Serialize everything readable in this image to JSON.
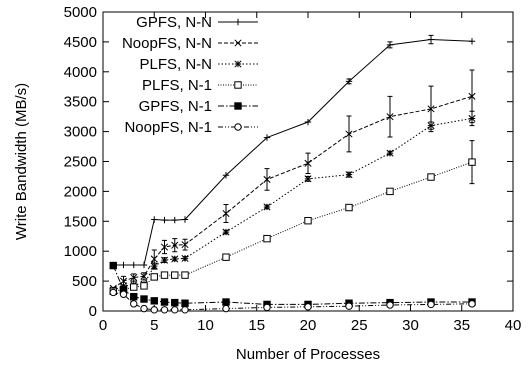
{
  "chart_data": {
    "type": "line",
    "title": "",
    "xlabel": "Number of Processes",
    "ylabel": "Write Bandwidth (MB/s)",
    "xlim": [
      0,
      40
    ],
    "ylim": [
      0,
      5000
    ],
    "xticks": [
      0,
      5,
      10,
      15,
      20,
      25,
      30,
      35,
      40
    ],
    "yticks": [
      0,
      500,
      1000,
      1500,
      2000,
      2500,
      3000,
      3500,
      4000,
      4500,
      5000
    ],
    "grid": false,
    "legend_position": "top-left",
    "series": [
      {
        "name": "GPFS, N-N",
        "marker": "plus",
        "dash": "solid",
        "x": [
          1,
          2,
          3,
          4,
          5,
          6,
          7,
          8,
          12,
          16,
          20,
          24,
          28,
          32,
          36
        ],
        "y": [
          770,
          770,
          770,
          770,
          1530,
          1520,
          1520,
          1530,
          2270,
          2900,
          3160,
          3840,
          4450,
          4540,
          4510
        ],
        "err": [
          0,
          0,
          0,
          0,
          0,
          0,
          0,
          0,
          0,
          0,
          0,
          40,
          50,
          70,
          0
        ]
      },
      {
        "name": "NoopFS, N-N",
        "marker": "cross",
        "dash": "dashed",
        "x": [
          1,
          2,
          3,
          4,
          5,
          6,
          7,
          8,
          12,
          16,
          20,
          24,
          28,
          32,
          36
        ],
        "y": [
          380,
          500,
          560,
          580,
          870,
          1070,
          1100,
          1110,
          1630,
          2200,
          2470,
          2960,
          3250,
          3380,
          3590
        ],
        "err": [
          0,
          80,
          60,
          60,
          150,
          110,
          110,
          90,
          150,
          180,
          170,
          300,
          340,
          380,
          440
        ]
      },
      {
        "name": "PLFS, N-N",
        "marker": "star",
        "dash": "dotted",
        "x": [
          1,
          2,
          3,
          4,
          5,
          6,
          7,
          8,
          12,
          16,
          20,
          24,
          28,
          32,
          36
        ],
        "y": [
          350,
          420,
          440,
          450,
          750,
          850,
          870,
          880,
          1320,
          1740,
          2210,
          2280,
          2640,
          3100,
          3220
        ],
        "err": [
          0,
          0,
          0,
          0,
          50,
          40,
          30,
          30,
          30,
          30,
          40,
          40,
          30,
          60,
          120
        ]
      },
      {
        "name": "PLFS, N-1",
        "marker": "square-open",
        "dash": "fine-dotted",
        "x": [
          1,
          2,
          3,
          4,
          5,
          6,
          7,
          8,
          12,
          16,
          20,
          24,
          28,
          32,
          36
        ],
        "y": [
          330,
          360,
          400,
          420,
          570,
          600,
          600,
          600,
          900,
          1210,
          1510,
          1730,
          2000,
          2240,
          2490
        ],
        "err": [
          0,
          0,
          0,
          0,
          0,
          0,
          0,
          0,
          0,
          0,
          0,
          0,
          0,
          0,
          360
        ]
      },
      {
        "name": "GPFS, N-1",
        "marker": "square-filled",
        "dash": "dash-dot",
        "x": [
          1,
          2,
          3,
          4,
          5,
          6,
          7,
          8,
          12,
          16,
          20,
          24,
          28,
          32,
          36
        ],
        "y": [
          760,
          350,
          240,
          200,
          170,
          150,
          140,
          130,
          150,
          110,
          110,
          130,
          140,
          150,
          150
        ],
        "err": [
          0,
          0,
          0,
          0,
          0,
          0,
          0,
          0,
          0,
          0,
          0,
          0,
          0,
          0,
          0
        ]
      },
      {
        "name": "NoopFS, N-1",
        "marker": "circle-open",
        "dash": "dash-dot-dot",
        "x": [
          1,
          2,
          3,
          4,
          5,
          6,
          7,
          8,
          12,
          16,
          20,
          24,
          28,
          32,
          36
        ],
        "y": [
          310,
          280,
          120,
          40,
          20,
          20,
          20,
          20,
          40,
          60,
          70,
          80,
          100,
          110,
          120
        ],
        "err": [
          0,
          0,
          0,
          0,
          0,
          0,
          0,
          0,
          0,
          0,
          0,
          0,
          0,
          0,
          0
        ]
      }
    ]
  }
}
